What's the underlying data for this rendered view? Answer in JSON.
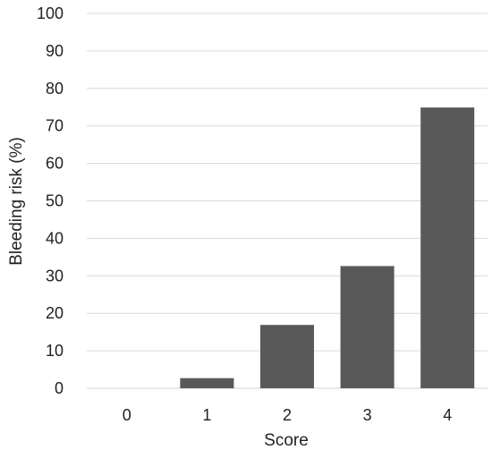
{
  "chart_data": {
    "type": "bar",
    "title": "",
    "xlabel": "Score",
    "ylabel": "Bleeding risk (%)",
    "categories": [
      "0",
      "1",
      "2",
      "3",
      "4"
    ],
    "values": [
      0,
      2.7,
      16.9,
      32.6,
      74.9
    ],
    "ylim": [
      0,
      100
    ],
    "yticks": [
      0,
      10,
      20,
      30,
      40,
      50,
      60,
      70,
      80,
      90,
      100
    ],
    "grid": true,
    "legend": "none",
    "bar_color": "#595959",
    "grid_color": "#d9d9d9"
  }
}
